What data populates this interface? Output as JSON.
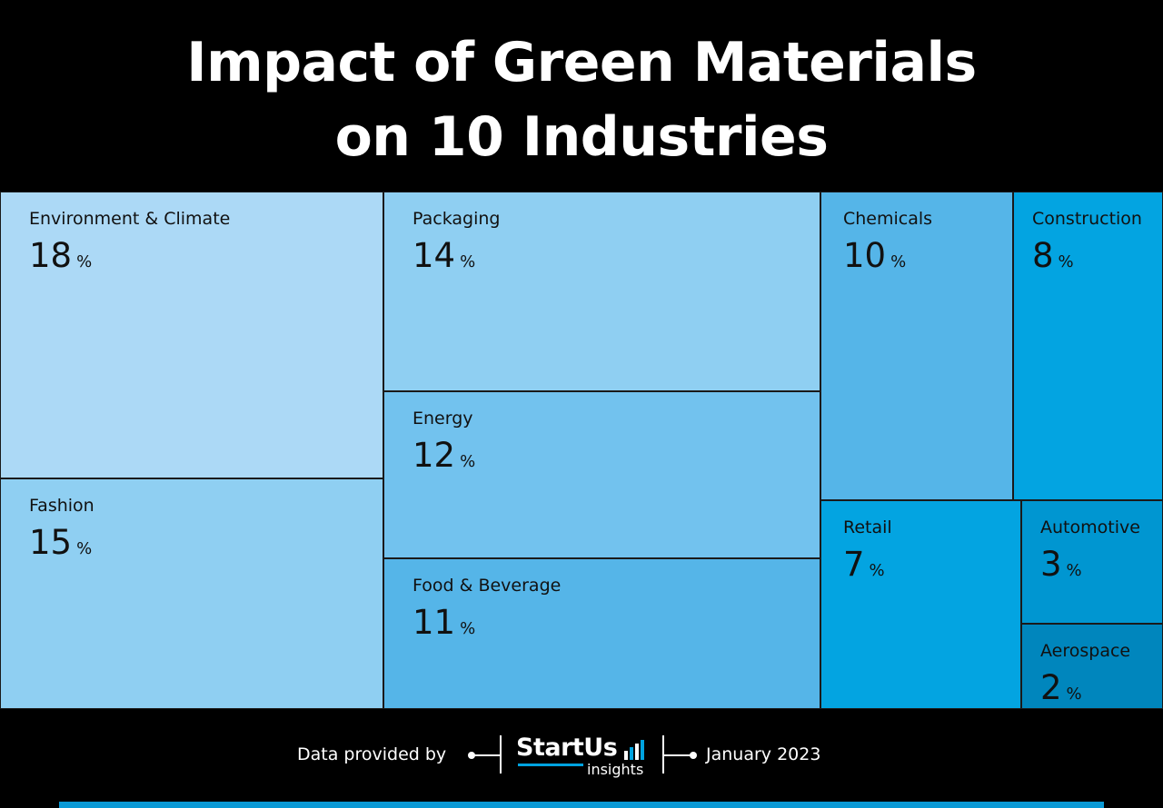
{
  "title": {
    "line1": "Impact of Green Materials",
    "line2": "on 10 Industries"
  },
  "chart_data": {
    "type": "treemap",
    "unit": "%",
    "items": [
      {
        "label": "Environment & Climate",
        "value": 18,
        "color": "#acd9f6"
      },
      {
        "label": "Fashion",
        "value": 15,
        "color": "#8fcff2"
      },
      {
        "label": "Packaging",
        "value": 14,
        "color": "#8fcff2"
      },
      {
        "label": "Energy",
        "value": 12,
        "color": "#72c2ee"
      },
      {
        "label": "Food & Beverage",
        "value": 11,
        "color": "#55b5e8"
      },
      {
        "label": "Chemicals",
        "value": 10,
        "color": "#55b5e8"
      },
      {
        "label": "Construction",
        "value": 8,
        "color": "#03a4e1"
      },
      {
        "label": "Retail",
        "value": 7,
        "color": "#03a4e1"
      },
      {
        "label": "Automotive",
        "value": 3,
        "color": "#0096d1"
      },
      {
        "label": "Aerospace",
        "value": 2,
        "color": "#0086bd"
      }
    ]
  },
  "footer": {
    "provided_by": "Data provided by",
    "brand": "StartUs",
    "brand_sub": "insights",
    "date": "January 2023"
  },
  "colors": {
    "background": "#000000",
    "accent": "#0a9ad6"
  }
}
